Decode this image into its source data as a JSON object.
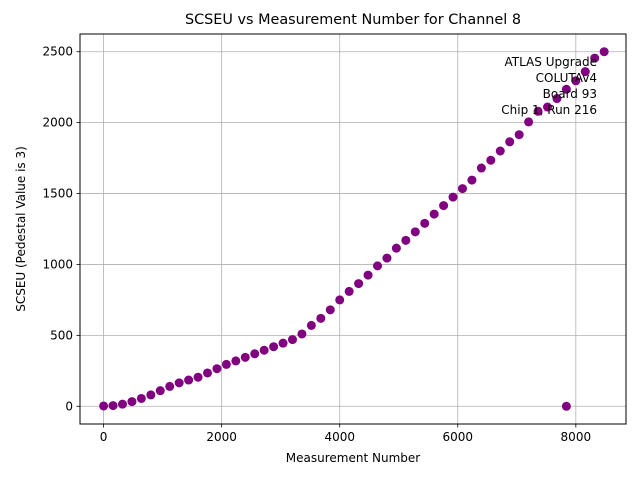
{
  "chart_data": {
    "type": "scatter",
    "title": "SCSEU vs Measurement Number for Channel 8",
    "xlabel": "Measurement Number",
    "ylabel": "SCSEU (Pedestal Value is 3)",
    "xlim": [
      -400,
      8850
    ],
    "ylim": [
      -125,
      2625
    ],
    "xticks": [
      0,
      2000,
      4000,
      6000,
      8000
    ],
    "yticks": [
      0,
      500,
      1000,
      1500,
      2000,
      2500
    ],
    "grid": true,
    "marker_color": "#800080",
    "annotation": [
      "ATLAS Upgrade",
      "COLUTAv4",
      "Board 93",
      "Chip 1, Run 216"
    ],
    "series": [
      {
        "x": [
          0,
          160,
          320,
          480,
          640,
          800,
          960,
          1120,
          1280,
          1440,
          1600,
          1760,
          1920,
          2080,
          2240,
          2400,
          2560,
          2720,
          2880,
          3040,
          3200,
          3360,
          3520,
          3680,
          3840,
          4000,
          4160,
          4320,
          4480,
          4640,
          4800,
          4960,
          5120,
          5280,
          5440,
          5600,
          5760,
          5920,
          6080,
          6240,
          6400,
          6560,
          6720,
          6880,
          7040,
          7200,
          7360,
          7520,
          7680,
          7840,
          8000,
          8160,
          8320,
          8480,
          7840
        ],
        "y": [
          2,
          5,
          15,
          33,
          55,
          80,
          110,
          140,
          165,
          185,
          205,
          235,
          265,
          295,
          320,
          345,
          370,
          395,
          420,
          445,
          470,
          510,
          570,
          620,
          680,
          750,
          810,
          865,
          925,
          990,
          1045,
          1115,
          1170,
          1230,
          1290,
          1355,
          1415,
          1475,
          1535,
          1595,
          1680,
          1735,
          1800,
          1865,
          1915,
          2005,
          2080,
          2110,
          2170,
          2235,
          2295,
          2360,
          2455,
          2500,
          0
        ]
      }
    ]
  }
}
